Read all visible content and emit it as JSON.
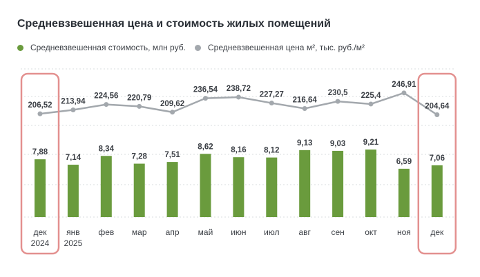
{
  "title": "Средневзвешенная цена и стоимость жилых помещений",
  "chart_data": {
    "type": "bar+line",
    "title": "Средневзвешенная цена и стоимость жилых помещений",
    "categories": [
      [
        "дек",
        "2024"
      ],
      [
        "янв",
        "2025"
      ],
      [
        "фев"
      ],
      [
        "мар"
      ],
      [
        "апр"
      ],
      [
        "май"
      ],
      [
        "июн"
      ],
      [
        "июл"
      ],
      [
        "авг"
      ],
      [
        "сен"
      ],
      [
        "окт"
      ],
      [
        "ноя"
      ],
      [
        "дек"
      ]
    ],
    "series": [
      {
        "name": "Средневзвешенная стоимость, млн руб.",
        "type": "bar",
        "color": "#6a9b3d",
        "values": [
          7.88,
          7.14,
          8.34,
          7.28,
          7.51,
          8.62,
          8.16,
          8.12,
          9.13,
          9.03,
          9.21,
          6.59,
          7.06
        ],
        "labels": [
          "7,88",
          "7,14",
          "8,34",
          "7,28",
          "7,51",
          "8,62",
          "8,16",
          "8,12",
          "9,13",
          "9,03",
          "9,21",
          "6,59",
          "7,06"
        ]
      },
      {
        "name": "Средневзвешенная цена м², тыс. руб./м²",
        "type": "line",
        "color": "#a3a8ad",
        "values": [
          206.52,
          213.94,
          224.56,
          220.79,
          209.62,
          236.54,
          238.72,
          227.27,
          216.64,
          230.5,
          225.4,
          246.91,
          204.64
        ],
        "labels": [
          "206,52",
          "213,94",
          "224,56",
          "220,79",
          "209,62",
          "236,54",
          "238,72",
          "227,27",
          "216,64",
          "230,5",
          "225,4",
          "246,91",
          "204,64"
        ]
      }
    ],
    "highlighted_categories": [
      0,
      12
    ],
    "highlight_color": "#e3908f",
    "grid": "dotted-horizontal"
  }
}
